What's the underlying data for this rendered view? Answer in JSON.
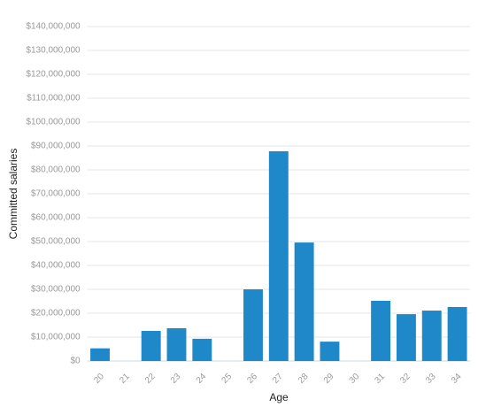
{
  "chart_data": {
    "type": "bar",
    "x_label": "Age",
    "y_label": "Committed salaries",
    "categories": [
      "20",
      "21",
      "22",
      "23",
      "24",
      "25",
      "26",
      "27",
      "28",
      "29",
      "30",
      "31",
      "32",
      "33",
      "34"
    ],
    "values": [
      5300000,
      0,
      12600000,
      13700000,
      9300000,
      0,
      30000000,
      87800000,
      49600000,
      8100000,
      0,
      25200000,
      19600000,
      21100000,
      22600000
    ],
    "color": "#1f88c9",
    "ylim": [
      0,
      140000000
    ],
    "yticks": [
      {
        "value": 0,
        "label": "$0"
      },
      {
        "value": 10000000,
        "label": "$10,000,000"
      },
      {
        "value": 20000000,
        "label": "$20,000,000"
      },
      {
        "value": 30000000,
        "label": "$30,000,000"
      },
      {
        "value": 40000000,
        "label": "$40,000,000"
      },
      {
        "value": 50000000,
        "label": "$50,000,000"
      },
      {
        "value": 60000000,
        "label": "$60,000,000"
      },
      {
        "value": 70000000,
        "label": "$70,000,000"
      },
      {
        "value": 80000000,
        "label": "$80,000,000"
      },
      {
        "value": 90000000,
        "label": "$90,000,000"
      },
      {
        "value": 100000000,
        "label": "$100,000,000"
      },
      {
        "value": 110000000,
        "label": "$110,000,000"
      },
      {
        "value": 120000000,
        "label": "$120,000,000"
      },
      {
        "value": 130000000,
        "label": "$130,000,000"
      },
      {
        "value": 140000000,
        "label": "$140,000,000"
      }
    ],
    "grid": true
  }
}
